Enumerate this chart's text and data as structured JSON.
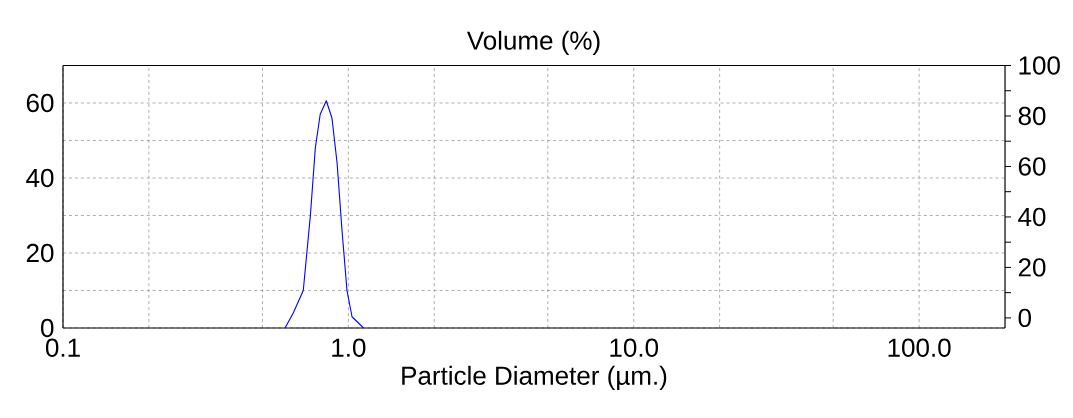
{
  "chart_data": {
    "type": "line",
    "title": "Volume (%)",
    "xlabel": "Particle Diameter (µm.)",
    "log": "x",
    "grid": true,
    "line_style": "solid",
    "xlim": [
      0.1,
      200
    ],
    "ylim": [
      0,
      70
    ],
    "y2lim": [
      -4,
      100
    ],
    "xticks": [
      0.1,
      {
        "value": 0.2,
        "label": null
      },
      {
        "value": 0.5,
        "label": null
      },
      {
        "value": 1,
        "label": "1.0"
      },
      {
        "value": 2,
        "label": null
      },
      {
        "value": 5,
        "label": null
      },
      {
        "value": 10,
        "label": "10.0"
      },
      {
        "value": 20,
        "label": null
      },
      {
        "value": 50,
        "label": null
      },
      {
        "value": 100,
        "label": "100.0"
      }
    ],
    "yticks": [
      0,
      {
        "value": 10,
        "label": null
      },
      20,
      {
        "value": 30,
        "label": null
      },
      40,
      {
        "value": 50,
        "label": null
      },
      60
    ],
    "y2ticks": [
      0,
      {
        "value": 10,
        "label": null
      },
      20,
      {
        "value": 30,
        "label": null
      },
      40,
      {
        "value": 50,
        "label": null
      },
      60,
      {
        "value": 70,
        "label": null
      },
      80,
      {
        "value": 90,
        "label": null
      },
      100
    ],
    "series": [
      {
        "color": "#0000ff",
        "x": [
          0.6,
          0.641,
          0.695,
          0.736,
          0.766,
          0.797,
          0.837,
          0.876,
          0.913,
          0.95,
          0.989,
          1.03,
          1.13
        ],
        "values": [
          0,
          4,
          10,
          30,
          48,
          57,
          60.6,
          56,
          44,
          26,
          10,
          3,
          0
        ]
      }
    ]
  }
}
